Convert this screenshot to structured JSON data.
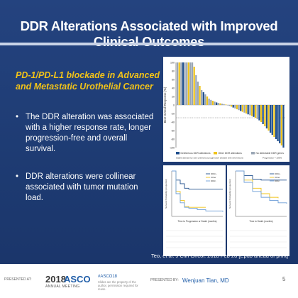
{
  "slide": {
    "title": "DDR Alterations Associated with Improved Clinical Outcomes",
    "subtitle": "PD-1/PD-L1 blockade  in Advanced and Metastatic Urothelial Cancer",
    "bullets": [
      "The DDR alteration was associated with a higher response rate, longer progression-free and overall survival.",
      "DDR alterations were collinear associated with  tumor mutation load."
    ],
    "bullet_glyph": "•",
    "citation": "Teo, et al. J Clin Oncol. 2018 Feb 28 [Epub ahead of print]",
    "page_number": "5"
  },
  "footer": {
    "presented_at_label": "PRESENTED AT:",
    "asco_year": "2018",
    "asco_word": "ASCO",
    "asco_sub": "ANNUAL MEETING",
    "hashtag": "#ASCO18",
    "copyright": "Slides are the property of the author, permission required for reuse.",
    "presented_by_label": "PRESENTED BY:",
    "presenter": "Wenjuan Tian, MD"
  },
  "colors": {
    "background": "#1f3b73",
    "accent": "#f2c318",
    "deleterious": "#1f4e8c",
    "other": "#f0c419",
    "none": "#9aa6b5"
  },
  "chart_data": [
    {
      "type": "bar",
      "ylabel": "Best Overall Response (%)",
      "yticks": [
        "100",
        "80",
        "60",
        "40",
        "20",
        "0",
        "-20",
        "-40",
        "-60",
        "-80",
        "-100"
      ],
      "ylim": [
        -100,
        100
      ],
      "legend": [
        "Deleterious DDR alterations",
        "Other DDR alterations",
        "No detectable DDR genes"
      ],
      "legend_notes": [
        "Stable disease by size criteria but progressive disease with new lesions",
        "Progression = 100%"
      ],
      "values": [
        100,
        100,
        100,
        100,
        100,
        100,
        100,
        100,
        100,
        90,
        70,
        55,
        45,
        35,
        30,
        25,
        20,
        15,
        12,
        10,
        8,
        6,
        5,
        4,
        3,
        2,
        1,
        0,
        -2,
        -4,
        -6,
        -8,
        -10,
        -12,
        -14,
        -16,
        -18,
        -20,
        -22,
        -24,
        -26,
        -28,
        -30,
        -33,
        -36,
        -40,
        -45,
        -50,
        -55,
        -60,
        -65,
        -70,
        -75,
        -80,
        -85,
        -90,
        -95,
        -100
      ],
      "groups": [
        "none",
        "other",
        "none",
        "deleterious",
        "none",
        "none",
        "other",
        "none",
        "none",
        "other",
        "none",
        "none",
        "other",
        "none",
        "deleterious",
        "none",
        "other",
        "none",
        "none",
        "other",
        "none",
        "deleterious",
        "none",
        "other",
        "none",
        "none",
        "other",
        "none",
        "none",
        "other",
        "deleterious",
        "none",
        "other",
        "none",
        "deleterious",
        "other",
        "none",
        "other",
        "deleterious",
        "none",
        "other",
        "deleterious",
        "other",
        "none",
        "deleterious",
        "other",
        "deleterious",
        "other",
        "deleterious",
        "other",
        "deleterious",
        "deleterious",
        "other",
        "deleterious",
        "deleterious",
        "deleterious",
        "other",
        "deleterious"
      ]
    },
    {
      "type": "line",
      "xlabel": "Time to Progression or Death (months)",
      "ylabel": "Survival Probability (proportion)",
      "legend": [
        "DDR+",
        "Other",
        "DDR-"
      ],
      "series": [
        {
          "name": "DDR+",
          "color": "#1f4e8c",
          "x": [
            0,
            2,
            4,
            6,
            8,
            12,
            16,
            20,
            24
          ],
          "y": [
            1.0,
            0.8,
            0.72,
            0.62,
            0.6,
            0.6,
            0.6,
            0.6,
            0.6
          ]
        },
        {
          "name": "Other",
          "color": "#f0c419",
          "x": [
            0,
            2,
            4,
            6,
            8,
            12,
            16
          ],
          "y": [
            1.0,
            0.55,
            0.35,
            0.22,
            0.2,
            0.2,
            0.2
          ]
        },
        {
          "name": "DDR-",
          "color": "#6f9fd8",
          "x": [
            0,
            2,
            4,
            6,
            8,
            12,
            16,
            24
          ],
          "y": [
            1.0,
            0.5,
            0.3,
            0.2,
            0.18,
            0.15,
            0.12,
            0.1
          ]
        }
      ]
    },
    {
      "type": "line",
      "xlabel": "Time to Death (months)",
      "ylabel": "Survival Probability (proportion)",
      "legend": [
        "DDR+",
        "Other",
        "DDR-"
      ],
      "series": [
        {
          "name": "DDR+",
          "color": "#1f4e8c",
          "x": [
            0,
            4,
            8,
            12,
            16,
            20,
            24
          ],
          "y": [
            1.0,
            0.9,
            0.82,
            0.8,
            0.8,
            0.8,
            0.8
          ]
        },
        {
          "name": "Other",
          "color": "#f0c419",
          "x": [
            0,
            4,
            8,
            12,
            16,
            20
          ],
          "y": [
            1.0,
            0.8,
            0.62,
            0.5,
            0.42,
            0.4
          ]
        },
        {
          "name": "DDR-",
          "color": "#6f9fd8",
          "x": [
            0,
            4,
            8,
            12,
            16,
            20,
            24
          ],
          "y": [
            1.0,
            0.75,
            0.55,
            0.42,
            0.35,
            0.3,
            0.28
          ]
        }
      ]
    }
  ]
}
